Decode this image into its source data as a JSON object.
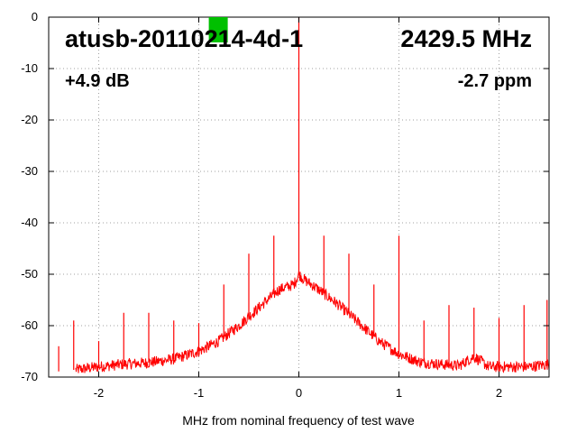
{
  "chart_data": {
    "type": "line",
    "title": "atusb-20110214-4d-1",
    "frequency_label": "2429.5 MHz",
    "power_label": "+4.9 dB",
    "offset_label": "-2.7 ppm",
    "xlabel": "MHz from nominal frequency of test wave",
    "ylabel": "",
    "xlim": [
      -2.5,
      2.5
    ],
    "ylim": [
      -70,
      0
    ],
    "x_ticks": [
      -2,
      -1,
      0,
      1,
      2
    ],
    "y_ticks": [
      0,
      -10,
      -20,
      -30,
      -40,
      -50,
      -60,
      -70
    ],
    "grid": true,
    "indicator_color": "#00c000",
    "indicator_x": -0.9,
    "series": [
      {
        "color": "#ff0000",
        "noise_floor": {
          "x": [
            -2.45,
            -2.2,
            -2.0,
            -1.75,
            -1.5,
            -1.25,
            -1.0,
            -0.8,
            -0.6,
            -0.4,
            -0.2,
            -0.05,
            0.0,
            0.05,
            0.2,
            0.4,
            0.6,
            0.8,
            1.0,
            1.2,
            1.4,
            1.6,
            1.75,
            1.9,
            2.1,
            2.3,
            2.5
          ],
          "y": [
            -69,
            -68.5,
            -68,
            -67.5,
            -67.2,
            -66.5,
            -65,
            -63,
            -60,
            -56.5,
            -53,
            -52,
            -50,
            -51,
            -53,
            -56,
            -59.5,
            -63,
            -65.5,
            -67,
            -67.5,
            -67.8,
            -66,
            -68,
            -68,
            -68,
            -67.5
          ]
        },
        "spurs": {
          "x": [
            -2.4,
            -2.25,
            -2.0,
            -1.75,
            -1.5,
            -1.25,
            -1.0,
            -0.75,
            -0.5,
            -0.25,
            0.0,
            0.25,
            0.5,
            0.75,
            1.0,
            1.25,
            1.5,
            1.75,
            2.0,
            2.25,
            2.48
          ],
          "y": [
            -64,
            -59,
            -63,
            -57.5,
            -57.5,
            -59,
            -59.5,
            -52,
            -46,
            -42.5,
            0,
            -42.5,
            -46,
            -52,
            -42.5,
            -59,
            -56,
            -56.5,
            -58.5,
            -56,
            -55
          ]
        }
      }
    ]
  }
}
